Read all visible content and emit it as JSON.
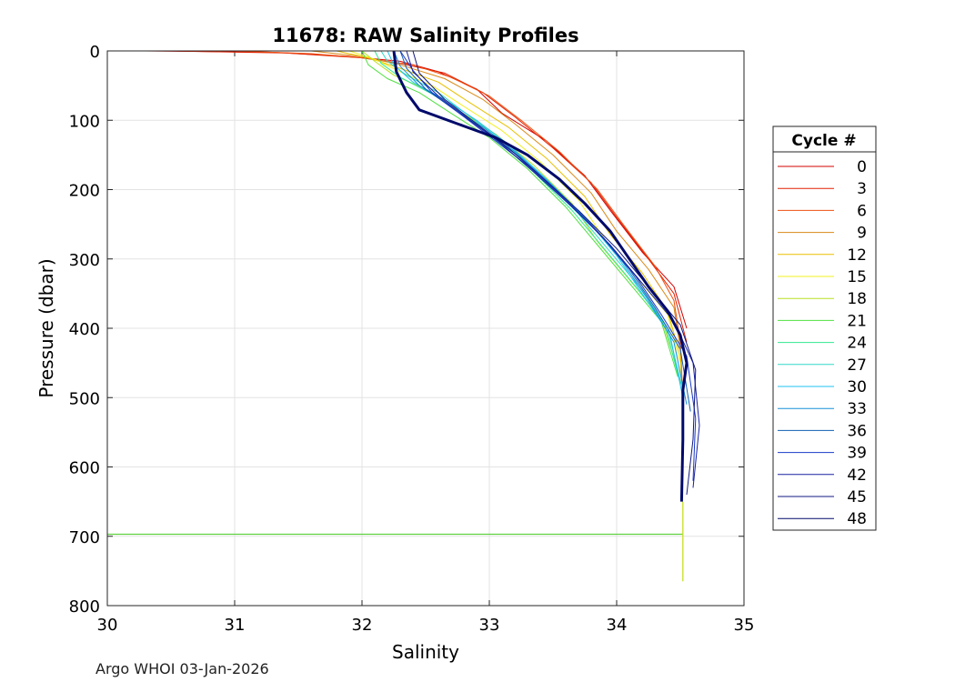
{
  "chart_data": {
    "type": "line",
    "title": "11678: RAW Salinity Profiles",
    "xlabel": "Salinity",
    "ylabel": "Pressure (dbar)",
    "xlim": [
      30,
      35
    ],
    "ylim": [
      0,
      800
    ],
    "y_reversed": true,
    "grid": true,
    "xticks": [
      30,
      31,
      32,
      33,
      34,
      35
    ],
    "yticks": [
      0,
      100,
      200,
      300,
      400,
      500,
      600,
      700,
      800
    ],
    "legend": {
      "title": "Cycle #",
      "placement": "right",
      "entries": [
        {
          "label": "0",
          "color": "#d40000"
        },
        {
          "label": "3",
          "color": "#e02000"
        },
        {
          "label": "6",
          "color": "#ee5010"
        },
        {
          "label": "9",
          "color": "#d88a18"
        },
        {
          "label": "12",
          "color": "#e8c000"
        },
        {
          "label": "15",
          "color": "#f2f020"
        },
        {
          "label": "18",
          "color": "#b8e020"
        },
        {
          "label": "21",
          "color": "#50e040"
        },
        {
          "label": "24",
          "color": "#30e890"
        },
        {
          "label": "27",
          "color": "#30d8c8"
        },
        {
          "label": "30",
          "color": "#20c0f0"
        },
        {
          "label": "33",
          "color": "#1890d8"
        },
        {
          "label": "36",
          "color": "#1060b0"
        },
        {
          "label": "39",
          "color": "#1838c8"
        },
        {
          "label": "42",
          "color": "#1820a0"
        },
        {
          "label": "45",
          "color": "#101880"
        },
        {
          "label": "48",
          "color": "#000a6a"
        }
      ]
    },
    "series": [
      {
        "name": "0",
        "color": "#d40000",
        "points": [
          [
            30.3,
            0
          ],
          [
            31.3,
            2
          ],
          [
            31.9,
            8
          ],
          [
            32.3,
            15
          ],
          [
            32.6,
            30
          ],
          [
            32.9,
            55
          ],
          [
            33.1,
            90
          ],
          [
            33.45,
            130
          ],
          [
            33.75,
            180
          ],
          [
            33.95,
            230
          ],
          [
            34.2,
            290
          ],
          [
            34.45,
            340
          ],
          [
            34.55,
            400
          ]
        ]
      },
      {
        "name": "3",
        "color": "#e02000",
        "points": [
          [
            30.5,
            0
          ],
          [
            31.4,
            3
          ],
          [
            32.0,
            10
          ],
          [
            32.3,
            18
          ],
          [
            32.65,
            32
          ],
          [
            32.95,
            60
          ],
          [
            33.2,
            95
          ],
          [
            33.5,
            140
          ],
          [
            33.8,
            190
          ],
          [
            34.0,
            240
          ],
          [
            34.25,
            300
          ],
          [
            34.45,
            350
          ],
          [
            34.55,
            420
          ]
        ]
      },
      {
        "name": "6",
        "color": "#ee5010",
        "points": [
          [
            31.0,
            0
          ],
          [
            31.6,
            4
          ],
          [
            32.0,
            10
          ],
          [
            32.4,
            20
          ],
          [
            32.7,
            38
          ],
          [
            33.0,
            65
          ],
          [
            33.25,
            100
          ],
          [
            33.55,
            145
          ],
          [
            33.85,
            200
          ],
          [
            34.05,
            250
          ],
          [
            34.3,
            310
          ],
          [
            34.45,
            360
          ],
          [
            34.5,
            420
          ],
          [
            34.52,
            500
          ]
        ]
      },
      {
        "name": "9",
        "color": "#d88a18",
        "points": [
          [
            31.6,
            0
          ],
          [
            32.0,
            8
          ],
          [
            32.3,
            20
          ],
          [
            32.65,
            40
          ],
          [
            32.95,
            70
          ],
          [
            33.2,
            105
          ],
          [
            33.5,
            150
          ],
          [
            33.8,
            205
          ],
          [
            34.0,
            260
          ],
          [
            34.25,
            315
          ],
          [
            34.45,
            370
          ],
          [
            34.5,
            430
          ]
        ]
      },
      {
        "name": "12",
        "color": "#e8c000",
        "points": [
          [
            31.8,
            0
          ],
          [
            32.05,
            10
          ],
          [
            32.3,
            25
          ],
          [
            32.6,
            45
          ],
          [
            32.85,
            75
          ],
          [
            33.15,
            110
          ],
          [
            33.45,
            155
          ],
          [
            33.75,
            210
          ],
          [
            33.95,
            265
          ],
          [
            34.2,
            320
          ],
          [
            34.4,
            375
          ],
          [
            34.5,
            440
          ],
          [
            34.52,
            520
          ]
        ]
      },
      {
        "name": "15",
        "color": "#f2f020",
        "points": [
          [
            31.9,
            0
          ],
          [
            32.1,
            12
          ],
          [
            32.3,
            30
          ],
          [
            32.55,
            50
          ],
          [
            32.8,
            80
          ],
          [
            33.1,
            115
          ],
          [
            33.4,
            160
          ],
          [
            33.7,
            215
          ],
          [
            33.9,
            270
          ],
          [
            34.15,
            325
          ],
          [
            34.4,
            380
          ],
          [
            34.5,
            450
          ]
        ]
      },
      {
        "name": "18",
        "color": "#b8e020",
        "points": [
          [
            32.0,
            0
          ],
          [
            32.1,
            15
          ],
          [
            32.25,
            35
          ],
          [
            32.5,
            55
          ],
          [
            32.75,
            85
          ],
          [
            33.05,
            120
          ],
          [
            33.35,
            165
          ],
          [
            33.65,
            220
          ],
          [
            33.85,
            275
          ],
          [
            34.1,
            330
          ],
          [
            34.35,
            385
          ],
          [
            34.48,
            460
          ]
        ]
      },
      {
        "name": "21",
        "color": "#50e040",
        "points": [
          [
            32.0,
            0
          ],
          [
            32.05,
            20
          ],
          [
            32.2,
            40
          ],
          [
            32.45,
            60
          ],
          [
            32.7,
            90
          ],
          [
            33.0,
            125
          ],
          [
            33.3,
            170
          ],
          [
            33.6,
            225
          ],
          [
            33.85,
            280
          ],
          [
            34.1,
            335
          ],
          [
            34.35,
            390
          ],
          [
            34.48,
            470
          ]
        ]
      },
      {
        "name": "24",
        "color": "#30e890",
        "points": [
          [
            32.1,
            0
          ],
          [
            32.15,
            18
          ],
          [
            32.3,
            38
          ],
          [
            32.55,
            62
          ],
          [
            32.8,
            92
          ],
          [
            33.05,
            128
          ],
          [
            33.35,
            175
          ],
          [
            33.65,
            230
          ],
          [
            33.9,
            285
          ],
          [
            34.15,
            340
          ],
          [
            34.38,
            395
          ],
          [
            34.5,
            480
          ]
        ]
      },
      {
        "name": "27",
        "color": "#30d8c8",
        "points": [
          [
            32.15,
            0
          ],
          [
            32.2,
            15
          ],
          [
            32.35,
            35
          ],
          [
            32.6,
            60
          ],
          [
            32.85,
            95
          ],
          [
            33.1,
            130
          ],
          [
            33.4,
            180
          ],
          [
            33.7,
            235
          ],
          [
            33.95,
            290
          ],
          [
            34.2,
            345
          ],
          [
            34.4,
            400
          ],
          [
            34.52,
            490
          ]
        ]
      },
      {
        "name": "30",
        "color": "#20c0f0",
        "points": [
          [
            32.2,
            0
          ],
          [
            32.25,
            20
          ],
          [
            32.4,
            45
          ],
          [
            32.65,
            70
          ],
          [
            32.9,
            100
          ],
          [
            33.15,
            135
          ],
          [
            33.45,
            185
          ],
          [
            33.75,
            240
          ],
          [
            34.0,
            295
          ],
          [
            34.2,
            350
          ],
          [
            34.42,
            410
          ],
          [
            34.52,
            500
          ]
        ]
      },
      {
        "name": "33",
        "color": "#1890d8",
        "points": [
          [
            32.25,
            0
          ],
          [
            32.3,
            22
          ],
          [
            32.45,
            50
          ],
          [
            32.7,
            80
          ],
          [
            32.95,
            110
          ],
          [
            33.2,
            145
          ],
          [
            33.5,
            195
          ],
          [
            33.8,
            250
          ],
          [
            34.05,
            305
          ],
          [
            34.25,
            360
          ],
          [
            34.45,
            420
          ],
          [
            34.55,
            510
          ]
        ]
      },
      {
        "name": "36",
        "color": "#1060b0",
        "points": [
          [
            32.3,
            0
          ],
          [
            32.35,
            25
          ],
          [
            32.5,
            55
          ],
          [
            32.75,
            88
          ],
          [
            33.0,
            120
          ],
          [
            33.25,
            155
          ],
          [
            33.55,
            205
          ],
          [
            33.85,
            260
          ],
          [
            34.1,
            315
          ],
          [
            34.3,
            370
          ],
          [
            34.5,
            430
          ],
          [
            34.58,
            520
          ]
        ]
      },
      {
        "name": "39",
        "color": "#1838c8",
        "points": [
          [
            32.3,
            0
          ],
          [
            32.4,
            28
          ],
          [
            32.55,
            60
          ],
          [
            32.8,
            95
          ],
          [
            33.05,
            130
          ],
          [
            33.3,
            165
          ],
          [
            33.6,
            215
          ],
          [
            33.9,
            270
          ],
          [
            34.15,
            325
          ],
          [
            34.35,
            380
          ],
          [
            34.55,
            440
          ],
          [
            34.62,
            530
          ],
          [
            34.6,
            620
          ]
        ]
      },
      {
        "name": "42",
        "color": "#1820a0",
        "points": [
          [
            32.35,
            0
          ],
          [
            32.4,
            30
          ],
          [
            32.6,
            65
          ],
          [
            32.85,
            100
          ],
          [
            33.1,
            135
          ],
          [
            33.35,
            175
          ],
          [
            33.65,
            225
          ],
          [
            33.95,
            280
          ],
          [
            34.2,
            335
          ],
          [
            34.45,
            390
          ],
          [
            34.6,
            450
          ],
          [
            34.65,
            540
          ],
          [
            34.6,
            630
          ]
        ]
      },
      {
        "name": "45",
        "color": "#101880",
        "points": [
          [
            32.4,
            0
          ],
          [
            32.45,
            32
          ],
          [
            32.65,
            70
          ],
          [
            32.9,
            105
          ],
          [
            33.15,
            140
          ],
          [
            33.4,
            180
          ],
          [
            33.7,
            230
          ],
          [
            34.0,
            285
          ],
          [
            34.25,
            340
          ],
          [
            34.5,
            395
          ],
          [
            34.62,
            460
          ],
          [
            34.6,
            560
          ],
          [
            34.55,
            640
          ]
        ]
      },
      {
        "name": "48",
        "color": "#000a6a",
        "bold": true,
        "points": [
          [
            32.25,
            0
          ],
          [
            32.27,
            30
          ],
          [
            32.35,
            60
          ],
          [
            32.45,
            85
          ],
          [
            32.75,
            105
          ],
          [
            33.05,
            125
          ],
          [
            33.3,
            150
          ],
          [
            33.55,
            185
          ],
          [
            33.75,
            220
          ],
          [
            33.95,
            260
          ],
          [
            34.1,
            300
          ],
          [
            34.25,
            340
          ],
          [
            34.4,
            375
          ],
          [
            34.5,
            410
          ],
          [
            34.55,
            450
          ],
          [
            34.52,
            490
          ],
          [
            34.52,
            560
          ],
          [
            34.51,
            650
          ]
        ]
      }
    ],
    "annotations": [
      {
        "label": "near-bottom horizontal trace",
        "color": "#60d040",
        "x": [
          30.0,
          34.52
        ],
        "y": 697
      },
      {
        "label": "vertical tail",
        "color": "#c8e020",
        "x": 34.52,
        "y": [
          650,
          765
        ]
      }
    ]
  },
  "footer": {
    "text": "Argo WHOI 03-Jan-2026"
  }
}
